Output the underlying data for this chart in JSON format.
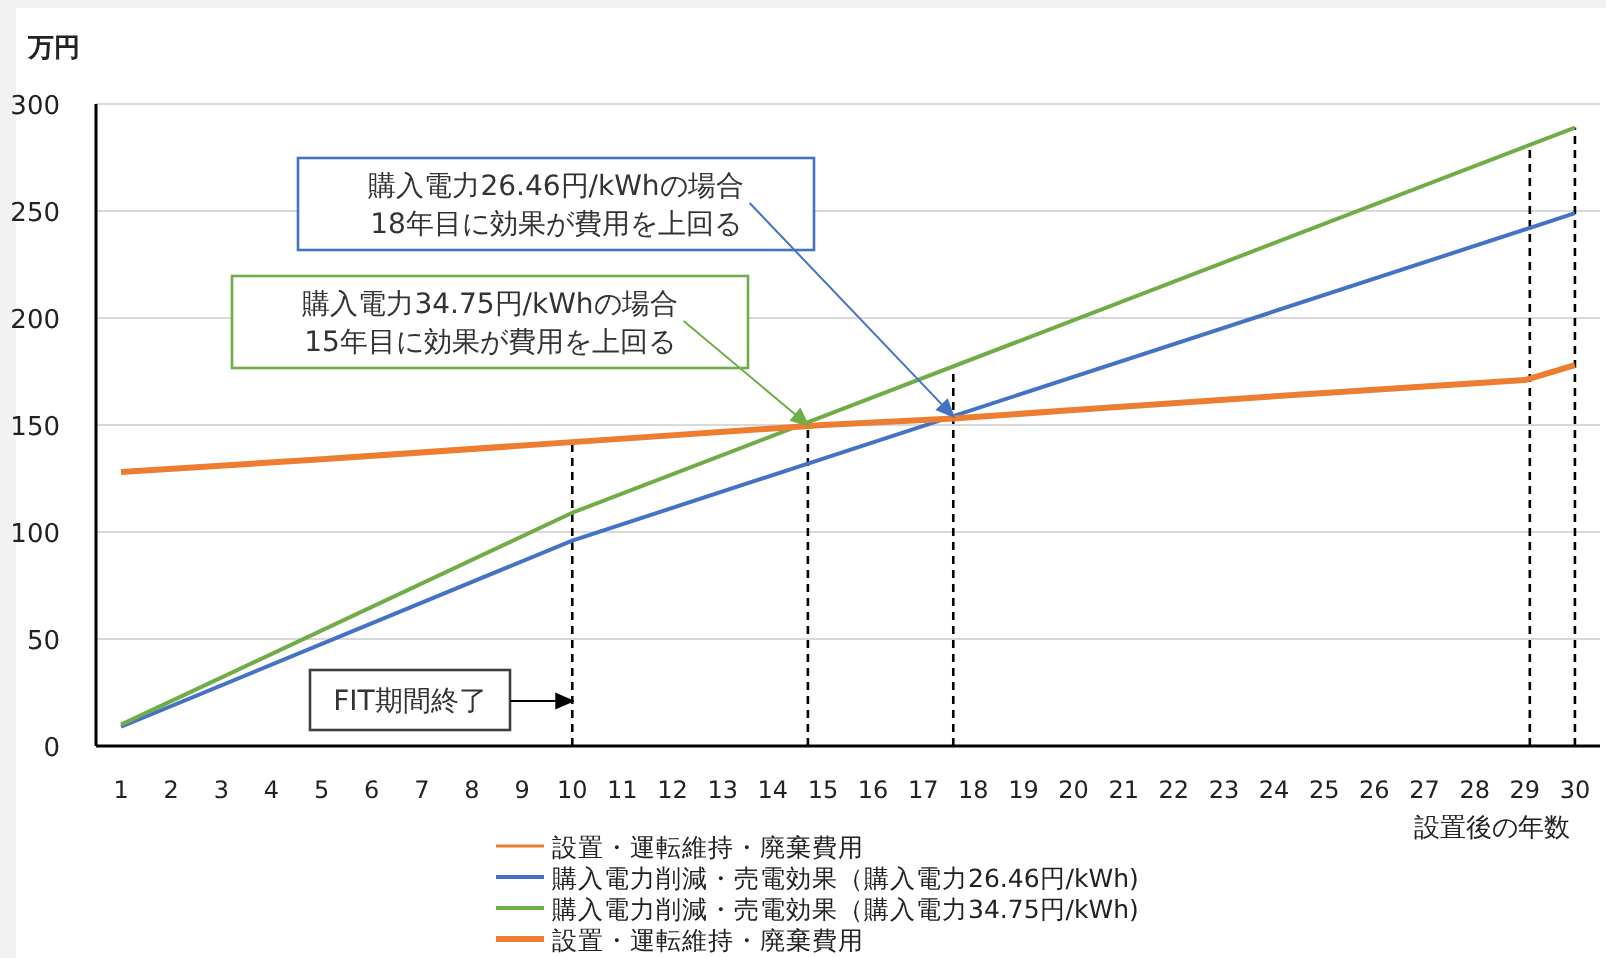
{
  "chart_data": {
    "type": "line",
    "ylabel": "万円",
    "xlabel": "設置後の年数",
    "xlim": [
      0.5,
      30.5
    ],
    "xticks": [
      1,
      2,
      3,
      4,
      5,
      6,
      7,
      8,
      9,
      10,
      11,
      12,
      13,
      14,
      15,
      16,
      17,
      18,
      19,
      20,
      21,
      22,
      23,
      24,
      25,
      26,
      27,
      28,
      29,
      30
    ],
    "ylim": [
      0,
      300
    ],
    "yticks": [
      0,
      50,
      100,
      150,
      200,
      250,
      300
    ],
    "grid": "y",
    "legend": "bottom",
    "marker": "none",
    "line_style": "solid",
    "series": [
      {
        "name": "設置・運転維持・廃棄費用",
        "color": "#ed7d31",
        "values": [
          null
        ]
      },
      {
        "name": "購入電力削減・売電効果（購入電力26.46円/kWh)",
        "color": "#4472c4",
        "x": [
          1,
          10,
          30
        ],
        "values": [
          9,
          96,
          249
        ]
      },
      {
        "name": "購入電力削減・売電効果（購入電力34.75円/kWh)",
        "color": "#70ad47",
        "x": [
          1,
          10,
          30
        ],
        "values": [
          10,
          109,
          289
        ]
      },
      {
        "name": "設置・運転維持・廃棄費用",
        "color": "#ed7d31",
        "x": [
          1,
          5,
          10,
          15,
          17.6,
          20,
          25,
          29,
          30
        ],
        "values": [
          128,
          134,
          142,
          150,
          153,
          157,
          165,
          171,
          178
        ]
      }
    ],
    "ref_lines": [
      {
        "axis": "x",
        "value": 10,
        "line_style": "dashed",
        "color": "#000000"
      },
      {
        "axis": "x",
        "value": 14.7,
        "line_style": "dashed",
        "color": "#000000"
      },
      {
        "axis": "x",
        "value": 17.6,
        "line_style": "dashed",
        "color": "#000000"
      },
      {
        "axis": "x",
        "value": 29.1,
        "line_style": "dashed",
        "color": "#000000"
      },
      {
        "axis": "x",
        "value": 30,
        "line_style": "dashed",
        "color": "#000000"
      }
    ],
    "annotations": [
      {
        "text": "購入電力26.46円/kWhの場合\n18年目に効果が費用を上回る",
        "x": 17.6,
        "y": 154
      },
      {
        "text": "購入電力34.75円/kWhの場合\n15年目に効果が費用を上回る",
        "x": 14.7,
        "y": 150
      },
      {
        "text": "FIT期間終了",
        "x": 10,
        "y": 21
      }
    ]
  }
}
